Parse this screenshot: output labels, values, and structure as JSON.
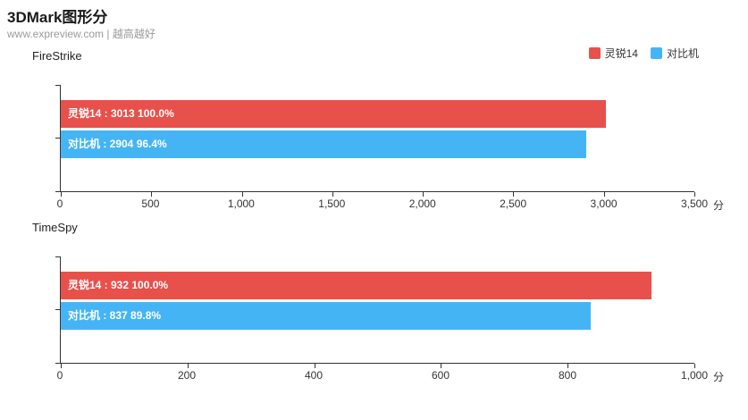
{
  "header": {
    "title": "3DMark图形分",
    "subtitle": "www.expreview.com | 越高越好"
  },
  "legend": [
    {
      "label": "灵锐14",
      "color": "#e8504c"
    },
    {
      "label": "对比机",
      "color": "#45b4f5"
    }
  ],
  "chart_data": [
    {
      "type": "bar",
      "orientation": "horizontal",
      "title": "FireStrike",
      "xlim": [
        0,
        3500
      ],
      "ticks": [
        "0",
        "500",
        "1,000",
        "1,500",
        "2,000",
        "2,500",
        "3,000",
        "3,500"
      ],
      "unit": "分",
      "series": [
        {
          "name": "灵锐14",
          "value": 3013,
          "percent": "100.0%",
          "label": "灵锐14 : 3013  100.0%",
          "color": "#e8504c"
        },
        {
          "name": "对比机",
          "value": 2904,
          "percent": "96.4%",
          "label": "对比机 : 2904  96.4%",
          "color": "#45b4f5"
        }
      ]
    },
    {
      "type": "bar",
      "orientation": "horizontal",
      "title": "TimeSpy",
      "xlim": [
        0,
        1000
      ],
      "ticks": [
        "0",
        "200",
        "400",
        "600",
        "800",
        "1,000"
      ],
      "unit": "分",
      "series": [
        {
          "name": "灵锐14",
          "value": 932,
          "percent": "100.0%",
          "label": "灵锐14 : 932  100.0%",
          "color": "#e8504c"
        },
        {
          "name": "对比机",
          "value": 837,
          "percent": "89.8%",
          "label": "对比机 : 837  89.8%",
          "color": "#45b4f5"
        }
      ]
    }
  ]
}
